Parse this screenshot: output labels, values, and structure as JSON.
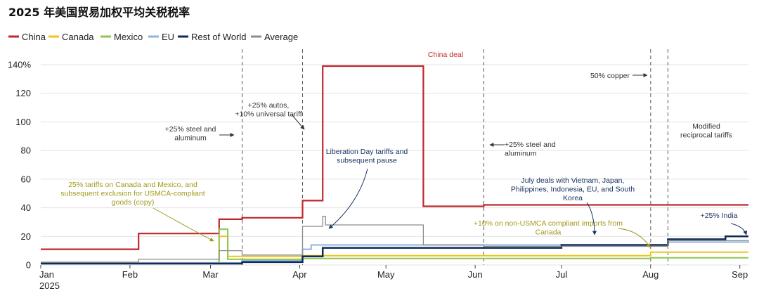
{
  "chart_data": {
    "type": "line",
    "title": "2025 年美国贸易加权平均关税税率",
    "ylim": [
      0,
      140
    ],
    "xlim": [
      "2025-01-01",
      "2025-09-04"
    ],
    "y_ticks": [
      "140%",
      "120",
      "100",
      "80",
      "60",
      "40",
      "20",
      "0"
    ],
    "x_ticks": [
      {
        "label": "Jan",
        "date": "2025-01-01"
      },
      {
        "label": "Feb",
        "date": "2025-02-01"
      },
      {
        "label": "Mar",
        "date": "2025-03-01"
      },
      {
        "label": "Apr",
        "date": "2025-04-01"
      },
      {
        "label": "May",
        "date": "2025-05-01"
      },
      {
        "label": "Jun",
        "date": "2025-06-01"
      },
      {
        "label": "Jul",
        "date": "2025-07-01"
      },
      {
        "label": "Aug",
        "date": "2025-08-01"
      },
      {
        "label": "Sep",
        "date": "2025-09-01"
      }
    ],
    "x_sublabel": "2025",
    "grid": true,
    "legend_position": "top-left",
    "series": [
      {
        "name": "China",
        "color": "#c0272d",
        "width": 2.2,
        "steps": [
          [
            "2025-01-01",
            11
          ],
          [
            "2025-02-04",
            22
          ],
          [
            "2025-03-04",
            32
          ],
          [
            "2025-03-12",
            33
          ],
          [
            "2025-04-02",
            45
          ],
          [
            "2025-04-09",
            139
          ],
          [
            "2025-05-14",
            41
          ],
          [
            "2025-06-04",
            42
          ],
          [
            "2025-09-04",
            42
          ]
        ]
      },
      {
        "name": "Canada",
        "color": "#f4c21b",
        "width": 2,
        "steps": [
          [
            "2025-01-01",
            1.5
          ],
          [
            "2025-03-04",
            20
          ],
          [
            "2025-03-07",
            6
          ],
          [
            "2025-04-02",
            6.5
          ],
          [
            "2025-08-01",
            9
          ],
          [
            "2025-09-04",
            9
          ]
        ]
      },
      {
        "name": "Mexico",
        "color": "#8fc650",
        "width": 2,
        "steps": [
          [
            "2025-01-01",
            1
          ],
          [
            "2025-03-04",
            25
          ],
          [
            "2025-03-07",
            4
          ],
          [
            "2025-04-02",
            4.5
          ],
          [
            "2025-08-01",
            5
          ],
          [
            "2025-09-04",
            5
          ]
        ]
      },
      {
        "name": "EU",
        "color": "#8fb4d9",
        "width": 2,
        "steps": [
          [
            "2025-01-01",
            1.5
          ],
          [
            "2025-03-12",
            3
          ],
          [
            "2025-04-02",
            11
          ],
          [
            "2025-04-05",
            14
          ],
          [
            "2025-06-04",
            14
          ],
          [
            "2025-08-07",
            16
          ],
          [
            "2025-09-04",
            17
          ]
        ]
      },
      {
        "name": "Rest of World",
        "color": "#102a56",
        "width": 2.5,
        "steps": [
          [
            "2025-01-01",
            1
          ],
          [
            "2025-03-12",
            2
          ],
          [
            "2025-04-02",
            6
          ],
          [
            "2025-04-09",
            12
          ],
          [
            "2025-07-01",
            14
          ],
          [
            "2025-08-07",
            18
          ],
          [
            "2025-08-27",
            20
          ],
          [
            "2025-09-04",
            20
          ]
        ]
      },
      {
        "name": "Average",
        "color": "#8c8c8c",
        "width": 1.3,
        "steps": [
          [
            "2025-01-01",
            2
          ],
          [
            "2025-02-04",
            4
          ],
          [
            "2025-03-04",
            10
          ],
          [
            "2025-03-12",
            7
          ],
          [
            "2025-04-02",
            27
          ],
          [
            "2025-04-09",
            34
          ],
          [
            "2025-04-10",
            28
          ],
          [
            "2025-05-14",
            14
          ],
          [
            "2025-06-04",
            13
          ],
          [
            "2025-08-07",
            17
          ],
          [
            "2025-09-04",
            17
          ]
        ]
      }
    ],
    "event_lines": [
      "2025-03-12",
      "2025-04-02",
      "2025-06-04",
      "2025-08-01",
      "2025-08-07"
    ],
    "annotations": [
      {
        "lines": [
          "China deal"
        ],
        "style": "red"
      },
      {
        "lines": [
          "+25% autos,",
          "+10% universal tariff"
        ],
        "style": "normal"
      },
      {
        "lines": [
          "+25% steel and",
          "aluminum"
        ],
        "style": "normal"
      },
      {
        "lines": [
          "Liberation Day tariffs and",
          "subsequent pause"
        ],
        "style": "navy"
      },
      {
        "lines": [
          "25% tariffs on Canada and Mexico, and",
          "subsequent exclusion for USMCA-compliant",
          "goods (copy)"
        ],
        "style": "gold"
      },
      {
        "lines": [
          "+25% steel and",
          "aluminum"
        ],
        "style": "normal"
      },
      {
        "lines": [
          "50% copper"
        ],
        "style": "normal"
      },
      {
        "lines": [
          "Modified",
          "reciprocal tariffs"
        ],
        "style": "normal"
      },
      {
        "lines": [
          "July deals with Vietnam, Japan,",
          "Philippines, Indonesia, EU, and South",
          "Korea"
        ],
        "style": "navy"
      },
      {
        "lines": [
          "+10% on non-USMCA compliant imports from",
          "Canada"
        ],
        "style": "gold"
      },
      {
        "lines": [
          "+25% India"
        ],
        "style": "navy"
      }
    ]
  }
}
